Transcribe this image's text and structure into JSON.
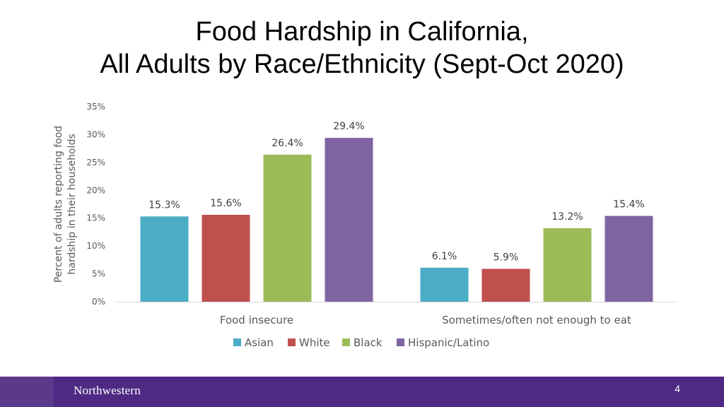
{
  "slide": {
    "title_line1": "Food Hardship in California,",
    "title_line2": "All Adults by Race/Ethnicity (Sept-Oct 2020)",
    "brand": "Northwestern",
    "page_number": "4"
  },
  "chart_data": {
    "type": "bar",
    "ylabel_line1": "Percent of adults reporting food",
    "ylabel_line2": "hardship in their households",
    "ylim": [
      0,
      35
    ],
    "yticks": [
      0,
      5,
      10,
      15,
      20,
      25,
      30,
      35
    ],
    "ytick_labels": [
      "0%",
      "5%",
      "10%",
      "15%",
      "20%",
      "25%",
      "30%",
      "35%"
    ],
    "grid": false,
    "legend_position": "bottom",
    "categories": [
      "Food insecure",
      "Sometimes/often not enough to eat"
    ],
    "series": [
      {
        "name": "Asian",
        "color": "#4bacc6",
        "values": [
          15.3,
          6.1
        ],
        "labels": [
          "15.3%",
          "6.1%"
        ]
      },
      {
        "name": "White",
        "color": "#c0504d",
        "values": [
          15.6,
          5.9
        ],
        "labels": [
          "15.6%",
          "5.9%"
        ]
      },
      {
        "name": "Black",
        "color": "#9bbb59",
        "values": [
          26.4,
          13.2
        ],
        "labels": [
          "26.4%",
          "13.2%"
        ]
      },
      {
        "name": "Hispanic/Latino",
        "color": "#8064a2",
        "values": [
          29.4,
          15.4
        ],
        "labels": [
          "29.4%",
          "15.4%"
        ]
      }
    ]
  }
}
